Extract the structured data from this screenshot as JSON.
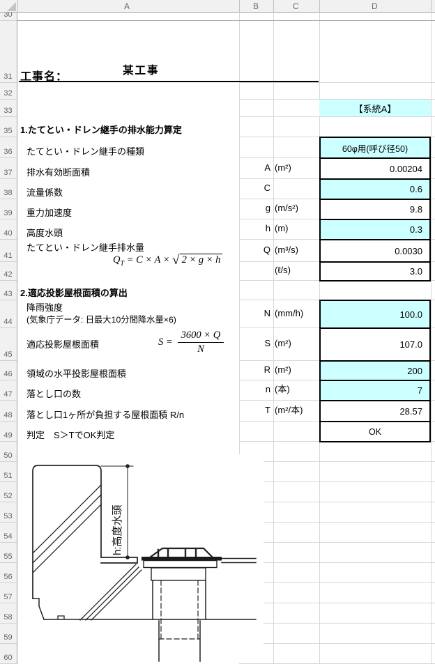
{
  "grid": {
    "col_headers": [
      "A",
      "B",
      "C",
      "D"
    ],
    "row_numbers": [
      "30",
      "31",
      "32",
      "33",
      "35",
      "36",
      "37",
      "38",
      "39",
      "40",
      "41",
      "42",
      "43",
      "44",
      "45",
      "46",
      "47",
      "48",
      "49",
      "50",
      "51",
      "52",
      "53",
      "54",
      "55",
      "56",
      "57",
      "58",
      "59",
      "60"
    ]
  },
  "header": {
    "project_label": "工事名：",
    "project_value": "某工事",
    "system_badge": "【系統A】"
  },
  "section1": {
    "title": "1.たてとい・ドレン継手の排水能力算定",
    "rows": [
      {
        "label": "たてとい・ドレン継手の種類",
        "var": "",
        "unit": "",
        "value": "60φ用(呼び径50)"
      },
      {
        "label": "排水有効断面積",
        "var": "A",
        "unit": "(m²)",
        "value": "0.00204"
      },
      {
        "label": "流量係数",
        "var": "C",
        "unit": "",
        "value": "0.6"
      },
      {
        "label": "重力加速度",
        "var": "g",
        "unit": "(m/s²)",
        "value": "9.8"
      },
      {
        "label": "高度水頭",
        "var": "h",
        "unit": "(m)",
        "value": "0.3"
      },
      {
        "label": "たてとい・ドレン継手排水量",
        "var": "Q",
        "unit": "(m³/s)",
        "value": "0.0030"
      },
      {
        "label": "",
        "var": "",
        "unit": "(ℓ/s)",
        "value": "3.0"
      }
    ],
    "formula": {
      "lhs": "Q",
      "sub": "T",
      "eq": "=",
      "body": "C × A ×",
      "root": "√",
      "radicand": "2 × g × h"
    }
  },
  "section2": {
    "title": "2.適応投影屋根面積の算出",
    "rows": [
      {
        "label": "降雨強度",
        "sublabel": "(気象庁データ: 日最大10分間降水量×6)",
        "var": "N",
        "unit": "(mm/h)",
        "value": "100.0"
      },
      {
        "label": "適応投影屋根面積",
        "var": "S",
        "unit": "(m²)",
        "value": "107.0"
      },
      {
        "label": "領域の水平投影屋根面積",
        "var": "R",
        "unit": "(m²)",
        "value": "200"
      },
      {
        "label": "落とし口の数",
        "var": "n",
        "unit": "(本)",
        "value": "7"
      },
      {
        "label": "落とし口1ヶ所が負担する屋根面積 R/n",
        "var": "T",
        "unit": "(m²/本)",
        "value": "28.57"
      },
      {
        "label": "判定　S＞TでOK判定",
        "var": "",
        "unit": "",
        "value": "OK"
      }
    ],
    "formula": {
      "lhs": "S",
      "eq": "=",
      "numerator": "3600 × Q",
      "denominator": "N"
    }
  },
  "diagram": {
    "head_label": "h:高度水頭"
  },
  "colors": {
    "input_fill": "#CCFFFF",
    "border": "#000000"
  }
}
